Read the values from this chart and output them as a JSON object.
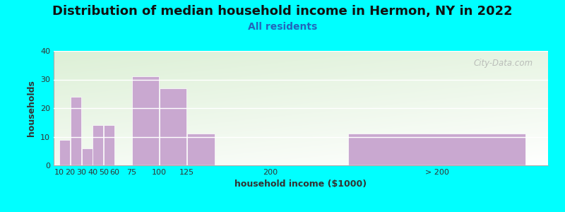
{
  "title": "Distribution of median household income in Hermon, NY in 2022",
  "subtitle": "All residents",
  "xlabel": "household income ($1000)",
  "ylabel": "households",
  "background_color": "#00FFFF",
  "bar_color": "#C9A8D0",
  "watermark": "City-Data.com",
  "ylim": [
    0,
    40
  ],
  "yticks": [
    0,
    10,
    20,
    30,
    40
  ],
  "xtick_positions": [
    10,
    20,
    30,
    40,
    50,
    60,
    75,
    100,
    125,
    200,
    350
  ],
  "xtick_labels": [
    "10",
    "20",
    "30",
    "40",
    "50",
    "60",
    "75",
    "100",
    "125",
    "200",
    "> 200"
  ],
  "bar_lefts": [
    10,
    20,
    30,
    40,
    50,
    75,
    100,
    125,
    270
  ],
  "bar_widths": [
    10,
    10,
    10,
    10,
    10,
    25,
    25,
    25,
    160
  ],
  "bar_vals": [
    9,
    24,
    6,
    14,
    14,
    31,
    27,
    11,
    11
  ],
  "xlim_left": 5,
  "xlim_right": 450,
  "title_fontsize": 13,
  "subtitle_fontsize": 10,
  "axis_label_fontsize": 9,
  "tick_fontsize": 8
}
